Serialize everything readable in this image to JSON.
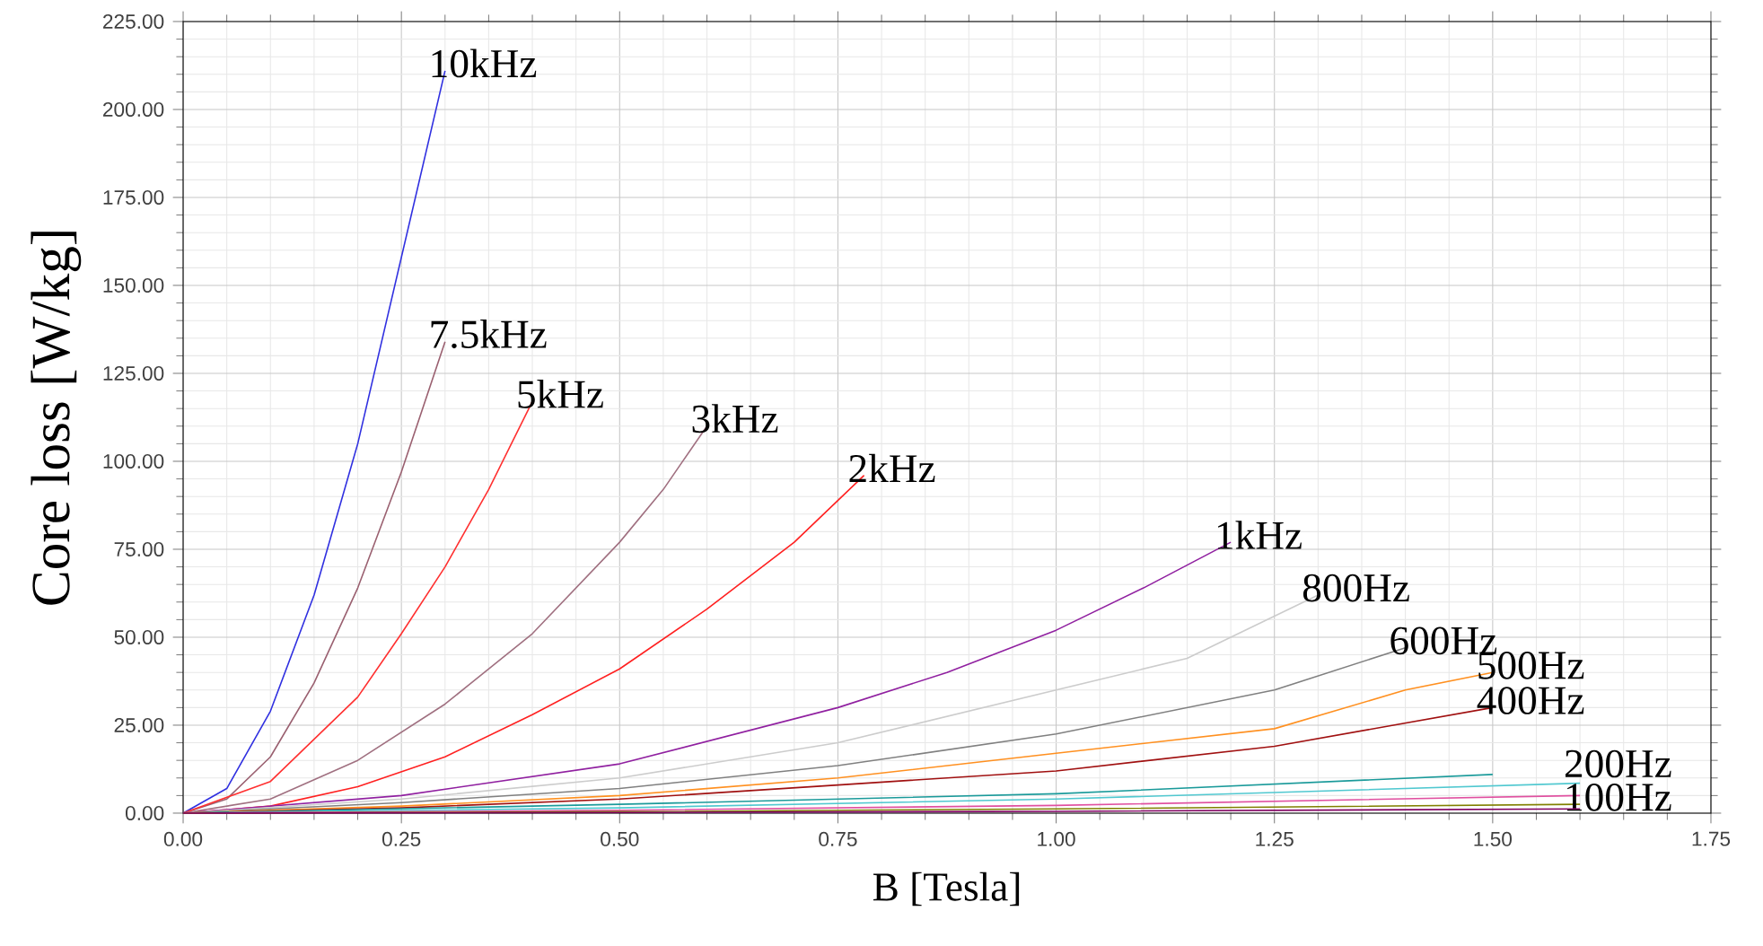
{
  "chart_data": {
    "type": "line",
    "xlabel": "B [Tesla]",
    "ylabel": "Core loss [W/kg]",
    "xlim": [
      0,
      1.75
    ],
    "ylim": [
      0,
      225
    ],
    "xticks": [
      {
        "value": 0,
        "label": "0.00"
      },
      {
        "value": 0.25,
        "label": "0.25"
      },
      {
        "value": 0.5,
        "label": "0.50"
      },
      {
        "value": 0.75,
        "label": "0.75"
      },
      {
        "value": 1,
        "label": "1.00"
      },
      {
        "value": 1.25,
        "label": "1.25"
      },
      {
        "value": 1.5,
        "label": "1.50"
      },
      {
        "value": 1.75,
        "label": "1.75"
      }
    ],
    "yticks": [
      {
        "value": 0,
        "label": "0.00"
      },
      {
        "value": 25,
        "label": "25.00"
      },
      {
        "value": 50,
        "label": "50.00"
      },
      {
        "value": 75,
        "label": "75.00"
      },
      {
        "value": 100,
        "label": "100.00"
      },
      {
        "value": 125,
        "label": "125.00"
      },
      {
        "value": 150,
        "label": "150.00"
      },
      {
        "value": 175,
        "label": "175.00"
      },
      {
        "value": 200,
        "label": "200.00"
      },
      {
        "value": 225,
        "label": "225.00"
      }
    ],
    "grid": true,
    "marker": "none",
    "line_style": "solid",
    "series": [
      {
        "name": "10kHz",
        "color": "#3030e0",
        "x": [
          0,
          0.05,
          0.1,
          0.15,
          0.2,
          0.25,
          0.3
        ],
        "values": [
          0,
          7,
          29,
          62,
          105,
          158,
          211
        ]
      },
      {
        "name": "7.5kHz",
        "color": "#9a6070",
        "x": [
          0,
          0.05,
          0.1,
          0.15,
          0.2,
          0.25,
          0.3
        ],
        "values": [
          0,
          4,
          16,
          37,
          64,
          97,
          134
        ]
      },
      {
        "name": "5kHz",
        "color": "#ff3030",
        "x": [
          0,
          0.1,
          0.2,
          0.25,
          0.3,
          0.35,
          0.4
        ],
        "values": [
          0,
          9,
          33,
          51,
          70,
          92,
          117
        ]
      },
      {
        "name": "3kHz",
        "color": "#a07080",
        "x": [
          0,
          0.1,
          0.2,
          0.3,
          0.4,
          0.5,
          0.55,
          0.6
        ],
        "values": [
          0,
          4,
          15,
          31,
          51,
          77,
          92,
          110
        ]
      },
      {
        "name": "2kHz",
        "color": "#ff2020",
        "x": [
          0,
          0.1,
          0.2,
          0.3,
          0.4,
          0.5,
          0.6,
          0.7,
          0.78
        ],
        "values": [
          0,
          2,
          7.5,
          16,
          28,
          41,
          58,
          77,
          96
        ]
      },
      {
        "name": "1kHz",
        "color": "#9020a0",
        "x": [
          0,
          0.25,
          0.5,
          0.75,
          0.875,
          1.0,
          1.1,
          1.2
        ],
        "values": [
          0,
          5,
          14,
          30,
          40,
          52,
          64,
          77
        ]
      },
      {
        "name": "800Hz",
        "color": "#cccccc",
        "x": [
          0,
          0.25,
          0.5,
          0.75,
          1.0,
          1.15,
          1.3
        ],
        "values": [
          0,
          4,
          10,
          20,
          35,
          44,
          62
        ]
      },
      {
        "name": "600Hz",
        "color": "#808080",
        "x": [
          0,
          0.25,
          0.5,
          0.75,
          1.0,
          1.25,
          1.4
        ],
        "values": [
          0,
          3,
          7,
          13.5,
          22.5,
          35,
          47
        ]
      },
      {
        "name": "500Hz",
        "color": "#ff9020",
        "x": [
          0,
          0.25,
          0.5,
          0.75,
          1.0,
          1.25,
          1.4,
          1.5
        ],
        "values": [
          0,
          2,
          5,
          10,
          17,
          24,
          35,
          40
        ]
      },
      {
        "name": "400Hz",
        "color": "#a01010",
        "x": [
          0,
          0.25,
          0.5,
          0.75,
          1.0,
          1.25,
          1.5
        ],
        "values": [
          0,
          1.5,
          4,
          8,
          12,
          19,
          30
        ]
      },
      {
        "color": "#1a9a9a",
        "x": [
          0,
          0.5,
          1.0,
          1.5
        ],
        "values": [
          0,
          2.5,
          5.5,
          11
        ]
      },
      {
        "name": "200Hz",
        "color": "#50c8d0",
        "x": [
          0,
          0.5,
          1.0,
          1.6
        ],
        "values": [
          0,
          1.5,
          4,
          8.5
        ]
      },
      {
        "color": "#e050a0",
        "x": [
          0,
          0.5,
          1.0,
          1.6
        ],
        "values": [
          0,
          0.8,
          2.2,
          5
        ]
      },
      {
        "name": "100Hz",
        "color": "#808000",
        "x": [
          0,
          0.5,
          1.0,
          1.6
        ],
        "values": [
          0,
          0.4,
          1.2,
          2.5
        ]
      },
      {
        "color": "#800060",
        "x": [
          0,
          0.5,
          1.0,
          1.6
        ],
        "values": [
          0,
          0.2,
          0.5,
          1.2
        ]
      }
    ]
  }
}
